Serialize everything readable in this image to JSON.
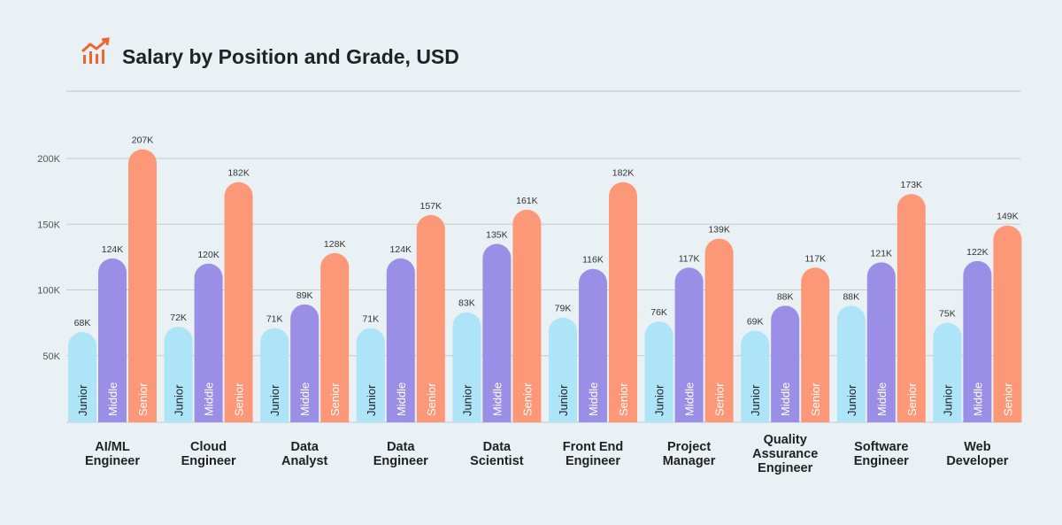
{
  "chart_data": {
    "type": "bar",
    "title": "Salary by Position and Grade, USD",
    "title_icon": "rising-bar-chart-icon",
    "categories": [
      [
        "AI/ML",
        "Engineer"
      ],
      [
        "Cloud",
        "Engineer"
      ],
      [
        "Data",
        "Analyst"
      ],
      [
        "Data",
        "Engineer"
      ],
      [
        "Data",
        "Scientist"
      ],
      [
        "Front End",
        "Engineer"
      ],
      [
        "Project",
        "Manager"
      ],
      [
        "Quality",
        "Assurance",
        "Engineer"
      ],
      [
        "Software",
        "Engineer"
      ],
      [
        "Web",
        "Developer"
      ]
    ],
    "series": [
      {
        "name": "Junior",
        "color": "#ade4f7",
        "text_color": "#222",
        "values": [
          68,
          72,
          71,
          71,
          83,
          79,
          76,
          69,
          88,
          75
        ]
      },
      {
        "name": "Middle",
        "color": "#9b8ee6",
        "text_color": "#ffffff",
        "values": [
          124,
          120,
          89,
          124,
          135,
          116,
          117,
          88,
          121,
          122
        ]
      },
      {
        "name": "Senior",
        "color": "#fc9878",
        "text_color": "#ffffff",
        "values": [
          207,
          182,
          128,
          157,
          161,
          182,
          139,
          117,
          173,
          149
        ]
      }
    ],
    "value_suffix": "K",
    "yticks": [
      50,
      100,
      150,
      200
    ],
    "ytick_labels": [
      "50K",
      "100K",
      "150K",
      "200K"
    ],
    "ylim": [
      0,
      200
    ],
    "grid": true,
    "accent": "#f0642d"
  }
}
